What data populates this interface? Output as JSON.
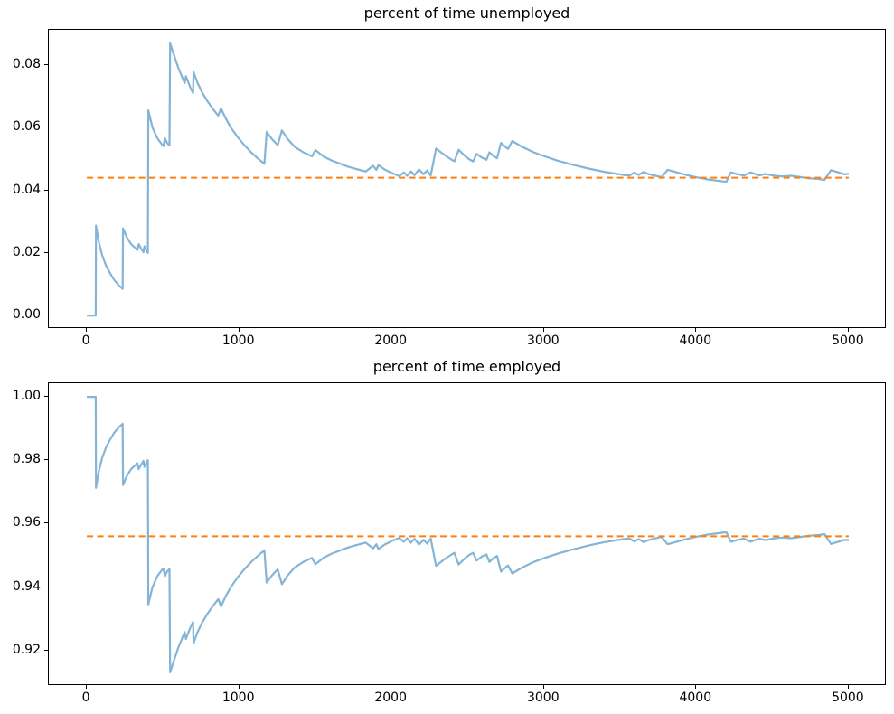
{
  "figure": {
    "background": "#ffffff",
    "axis_color": "#000000",
    "grid": false,
    "legend": null
  },
  "chart_data": [
    {
      "type": "line",
      "title": "percent of time unemployed",
      "xlabel": "",
      "ylabel": "",
      "xlim": [
        -250,
        5250
      ],
      "ylim": [
        -0.0043,
        0.0912
      ],
      "xticks": [
        0,
        1000,
        2000,
        3000,
        4000,
        5000
      ],
      "xtick_labels": [
        "0",
        "1000",
        "2000",
        "3000",
        "4000",
        "5000"
      ],
      "yticks": [
        0.0,
        0.02,
        0.04,
        0.06,
        0.08
      ],
      "ytick_labels": [
        "0.00",
        "0.02",
        "0.04",
        "0.06",
        "0.08"
      ],
      "grid": false,
      "legend": null,
      "series": [
        {
          "name": "cumulative-fraction-unemployed",
          "style": "solid",
          "color": "#1f77b4",
          "alpha": 0.55,
          "width": 2.2,
          "x": [
            0,
            58,
            60,
            78,
            100,
            125,
            152,
            180,
            210,
            235,
            237,
            262,
            290,
            315,
            332,
            340,
            356,
            371,
            378,
            392,
            400,
            403,
            430,
            462,
            492,
            503,
            512,
            527,
            542,
            546,
            572,
            602,
            630,
            642,
            650,
            665,
            682,
            697,
            700,
            725,
            755,
            790,
            825,
            862,
            880,
            910,
            945,
            985,
            1030,
            1080,
            1130,
            1165,
            1180,
            1215,
            1252,
            1280,
            1320,
            1365,
            1420,
            1478,
            1500,
            1555,
            1610,
            1665,
            1715,
            1772,
            1830,
            1878,
            1900,
            1913,
            1955,
            2005,
            2050,
            2080,
            2102,
            2126,
            2150,
            2180,
            2210,
            2233,
            2257,
            2292,
            2342,
            2376,
            2412,
            2440,
            2482,
            2512,
            2535,
            2558,
            2592,
            2622,
            2642,
            2668,
            2692,
            2718,
            2748,
            2764,
            2792,
            2855,
            2932,
            3005,
            3092,
            3192,
            3292,
            3392,
            3482,
            3530,
            3562,
            3592,
            3622,
            3652,
            3692,
            3732,
            3772,
            3812,
            3872,
            3932,
            4002,
            4082,
            4152,
            4197,
            4227,
            4272,
            4312,
            4357,
            4412,
            4452,
            4502,
            4562,
            4622,
            4682,
            4742,
            4802,
            4842,
            4884,
            4932,
            4972,
            5000
          ],
          "y": [
            0,
            0,
            0.0287,
            0.0235,
            0.0193,
            0.016,
            0.0135,
            0.0113,
            0.0096,
            0.0085,
            0.0278,
            0.025,
            0.0228,
            0.0217,
            0.021,
            0.0228,
            0.0214,
            0.0202,
            0.0221,
            0.0207,
            0.02,
            0.0655,
            0.0601,
            0.0566,
            0.0546,
            0.0541,
            0.0566,
            0.055,
            0.0543,
            0.0869,
            0.0831,
            0.0788,
            0.0756,
            0.0742,
            0.0764,
            0.0745,
            0.0724,
            0.071,
            0.0777,
            0.0744,
            0.0713,
            0.0685,
            0.0661,
            0.0638,
            0.0661,
            0.063,
            0.06,
            0.0572,
            0.0546,
            0.052,
            0.0498,
            0.0484,
            0.0586,
            0.0563,
            0.0544,
            0.0591,
            0.0562,
            0.0538,
            0.0521,
            0.0508,
            0.0528,
            0.0507,
            0.0494,
            0.0484,
            0.0475,
            0.0467,
            0.046,
            0.0478,
            0.0465,
            0.048,
            0.0466,
            0.0454,
            0.0445,
            0.0457,
            0.0446,
            0.046,
            0.0448,
            0.0466,
            0.0451,
            0.0463,
            0.0447,
            0.0533,
            0.0514,
            0.0503,
            0.0492,
            0.0529,
            0.0509,
            0.0498,
            0.0492,
            0.0516,
            0.0504,
            0.0497,
            0.0521,
            0.0509,
            0.0502,
            0.0551,
            0.0538,
            0.0532,
            0.0557,
            0.0539,
            0.0521,
            0.0508,
            0.0494,
            0.0481,
            0.0469,
            0.0459,
            0.0452,
            0.0448,
            0.0447,
            0.0456,
            0.0449,
            0.0458,
            0.0451,
            0.0446,
            0.0442,
            0.0465,
            0.0457,
            0.0449,
            0.0441,
            0.0434,
            0.043,
            0.0427,
            0.0457,
            0.0451,
            0.0447,
            0.0457,
            0.0447,
            0.0452,
            0.0447,
            0.0444,
            0.0446,
            0.0442,
            0.0438,
            0.0436,
            0.0433,
            0.0464,
            0.0457,
            0.0451,
            0.0452
          ]
        },
        {
          "name": "stationary-mean-unemployed",
          "style": "dashed",
          "color": "#ff7f0e",
          "alpha": 1,
          "width": 2,
          "x": [
            0,
            5000
          ],
          "y": [
            0.044,
            0.044
          ]
        }
      ]
    },
    {
      "type": "line",
      "title": "percent of time employed",
      "xlabel": "",
      "ylabel": "",
      "xlim": [
        -250,
        5250
      ],
      "ylim": [
        0.9088,
        1.0043
      ],
      "xticks": [
        0,
        1000,
        2000,
        3000,
        4000,
        5000
      ],
      "xtick_labels": [
        "0",
        "1000",
        "2000",
        "3000",
        "4000",
        "5000"
      ],
      "yticks": [
        0.92,
        0.94,
        0.96,
        0.98,
        1.0
      ],
      "ytick_labels": [
        "0.92",
        "0.94",
        "0.96",
        "0.98",
        "1.00"
      ],
      "grid": false,
      "legend": null,
      "series": [
        {
          "name": "cumulative-fraction-employed",
          "style": "solid",
          "color": "#1f77b4",
          "alpha": 0.55,
          "width": 2.2,
          "x": [
            0,
            58,
            60,
            78,
            100,
            125,
            152,
            180,
            210,
            235,
            237,
            262,
            290,
            315,
            332,
            340,
            356,
            371,
            378,
            392,
            400,
            403,
            430,
            462,
            492,
            503,
            512,
            527,
            542,
            546,
            572,
            602,
            630,
            642,
            650,
            665,
            682,
            697,
            700,
            725,
            755,
            790,
            825,
            862,
            880,
            910,
            945,
            985,
            1030,
            1080,
            1130,
            1165,
            1180,
            1215,
            1252,
            1280,
            1320,
            1365,
            1420,
            1478,
            1500,
            1555,
            1610,
            1665,
            1715,
            1772,
            1830,
            1878,
            1900,
            1913,
            1955,
            2005,
            2050,
            2080,
            2102,
            2126,
            2150,
            2180,
            2210,
            2233,
            2257,
            2292,
            2342,
            2376,
            2412,
            2440,
            2482,
            2512,
            2535,
            2558,
            2592,
            2622,
            2642,
            2668,
            2692,
            2718,
            2748,
            2764,
            2792,
            2855,
            2932,
            3005,
            3092,
            3192,
            3292,
            3392,
            3482,
            3530,
            3562,
            3592,
            3622,
            3652,
            3692,
            3732,
            3772,
            3812,
            3872,
            3932,
            4002,
            4082,
            4152,
            4197,
            4227,
            4272,
            4312,
            4357,
            4412,
            4452,
            4502,
            4562,
            4622,
            4682,
            4742,
            4802,
            4842,
            4884,
            4932,
            4972,
            5000
          ],
          "y": [
            1,
            1,
            0.9713,
            0.9765,
            0.9807,
            0.984,
            0.9865,
            0.9887,
            0.9904,
            0.9915,
            0.9722,
            0.975,
            0.9772,
            0.9783,
            0.979,
            0.9772,
            0.9786,
            0.9798,
            0.9779,
            0.9793,
            0.98,
            0.9345,
            0.9399,
            0.9434,
            0.9454,
            0.9459,
            0.9434,
            0.945,
            0.9457,
            0.9131,
            0.9169,
            0.9212,
            0.9244,
            0.9258,
            0.9236,
            0.9255,
            0.9276,
            0.929,
            0.9223,
            0.9256,
            0.9287,
            0.9315,
            0.9339,
            0.9362,
            0.9339,
            0.937,
            0.94,
            0.9428,
            0.9454,
            0.948,
            0.9502,
            0.9516,
            0.9414,
            0.9437,
            0.9456,
            0.9409,
            0.9438,
            0.9462,
            0.9479,
            0.9492,
            0.9472,
            0.9493,
            0.9506,
            0.9516,
            0.9525,
            0.9533,
            0.954,
            0.9522,
            0.9535,
            0.952,
            0.9534,
            0.9546,
            0.9555,
            0.9543,
            0.9554,
            0.954,
            0.9552,
            0.9534,
            0.9549,
            0.9537,
            0.9553,
            0.9467,
            0.9486,
            0.9497,
            0.9508,
            0.9471,
            0.9491,
            0.9502,
            0.9508,
            0.9484,
            0.9496,
            0.9503,
            0.9479,
            0.9491,
            0.9498,
            0.9449,
            0.9462,
            0.9468,
            0.9443,
            0.9461,
            0.9479,
            0.9492,
            0.9506,
            0.9519,
            0.9531,
            0.9541,
            0.9548,
            0.9552,
            0.9553,
            0.9544,
            0.9551,
            0.9542,
            0.9549,
            0.9554,
            0.9558,
            0.9535,
            0.9543,
            0.9551,
            0.9559,
            0.9566,
            0.957,
            0.9573,
            0.9543,
            0.9549,
            0.9553,
            0.9543,
            0.9553,
            0.9548,
            0.9553,
            0.9556,
            0.9554,
            0.9558,
            0.9562,
            0.9564,
            0.9567,
            0.9536,
            0.9543,
            0.9549,
            0.9548
          ]
        },
        {
          "name": "stationary-mean-employed",
          "style": "dashed",
          "color": "#ff7f0e",
          "alpha": 1,
          "width": 2,
          "x": [
            0,
            5000
          ],
          "y": [
            0.956,
            0.956
          ]
        }
      ]
    }
  ]
}
